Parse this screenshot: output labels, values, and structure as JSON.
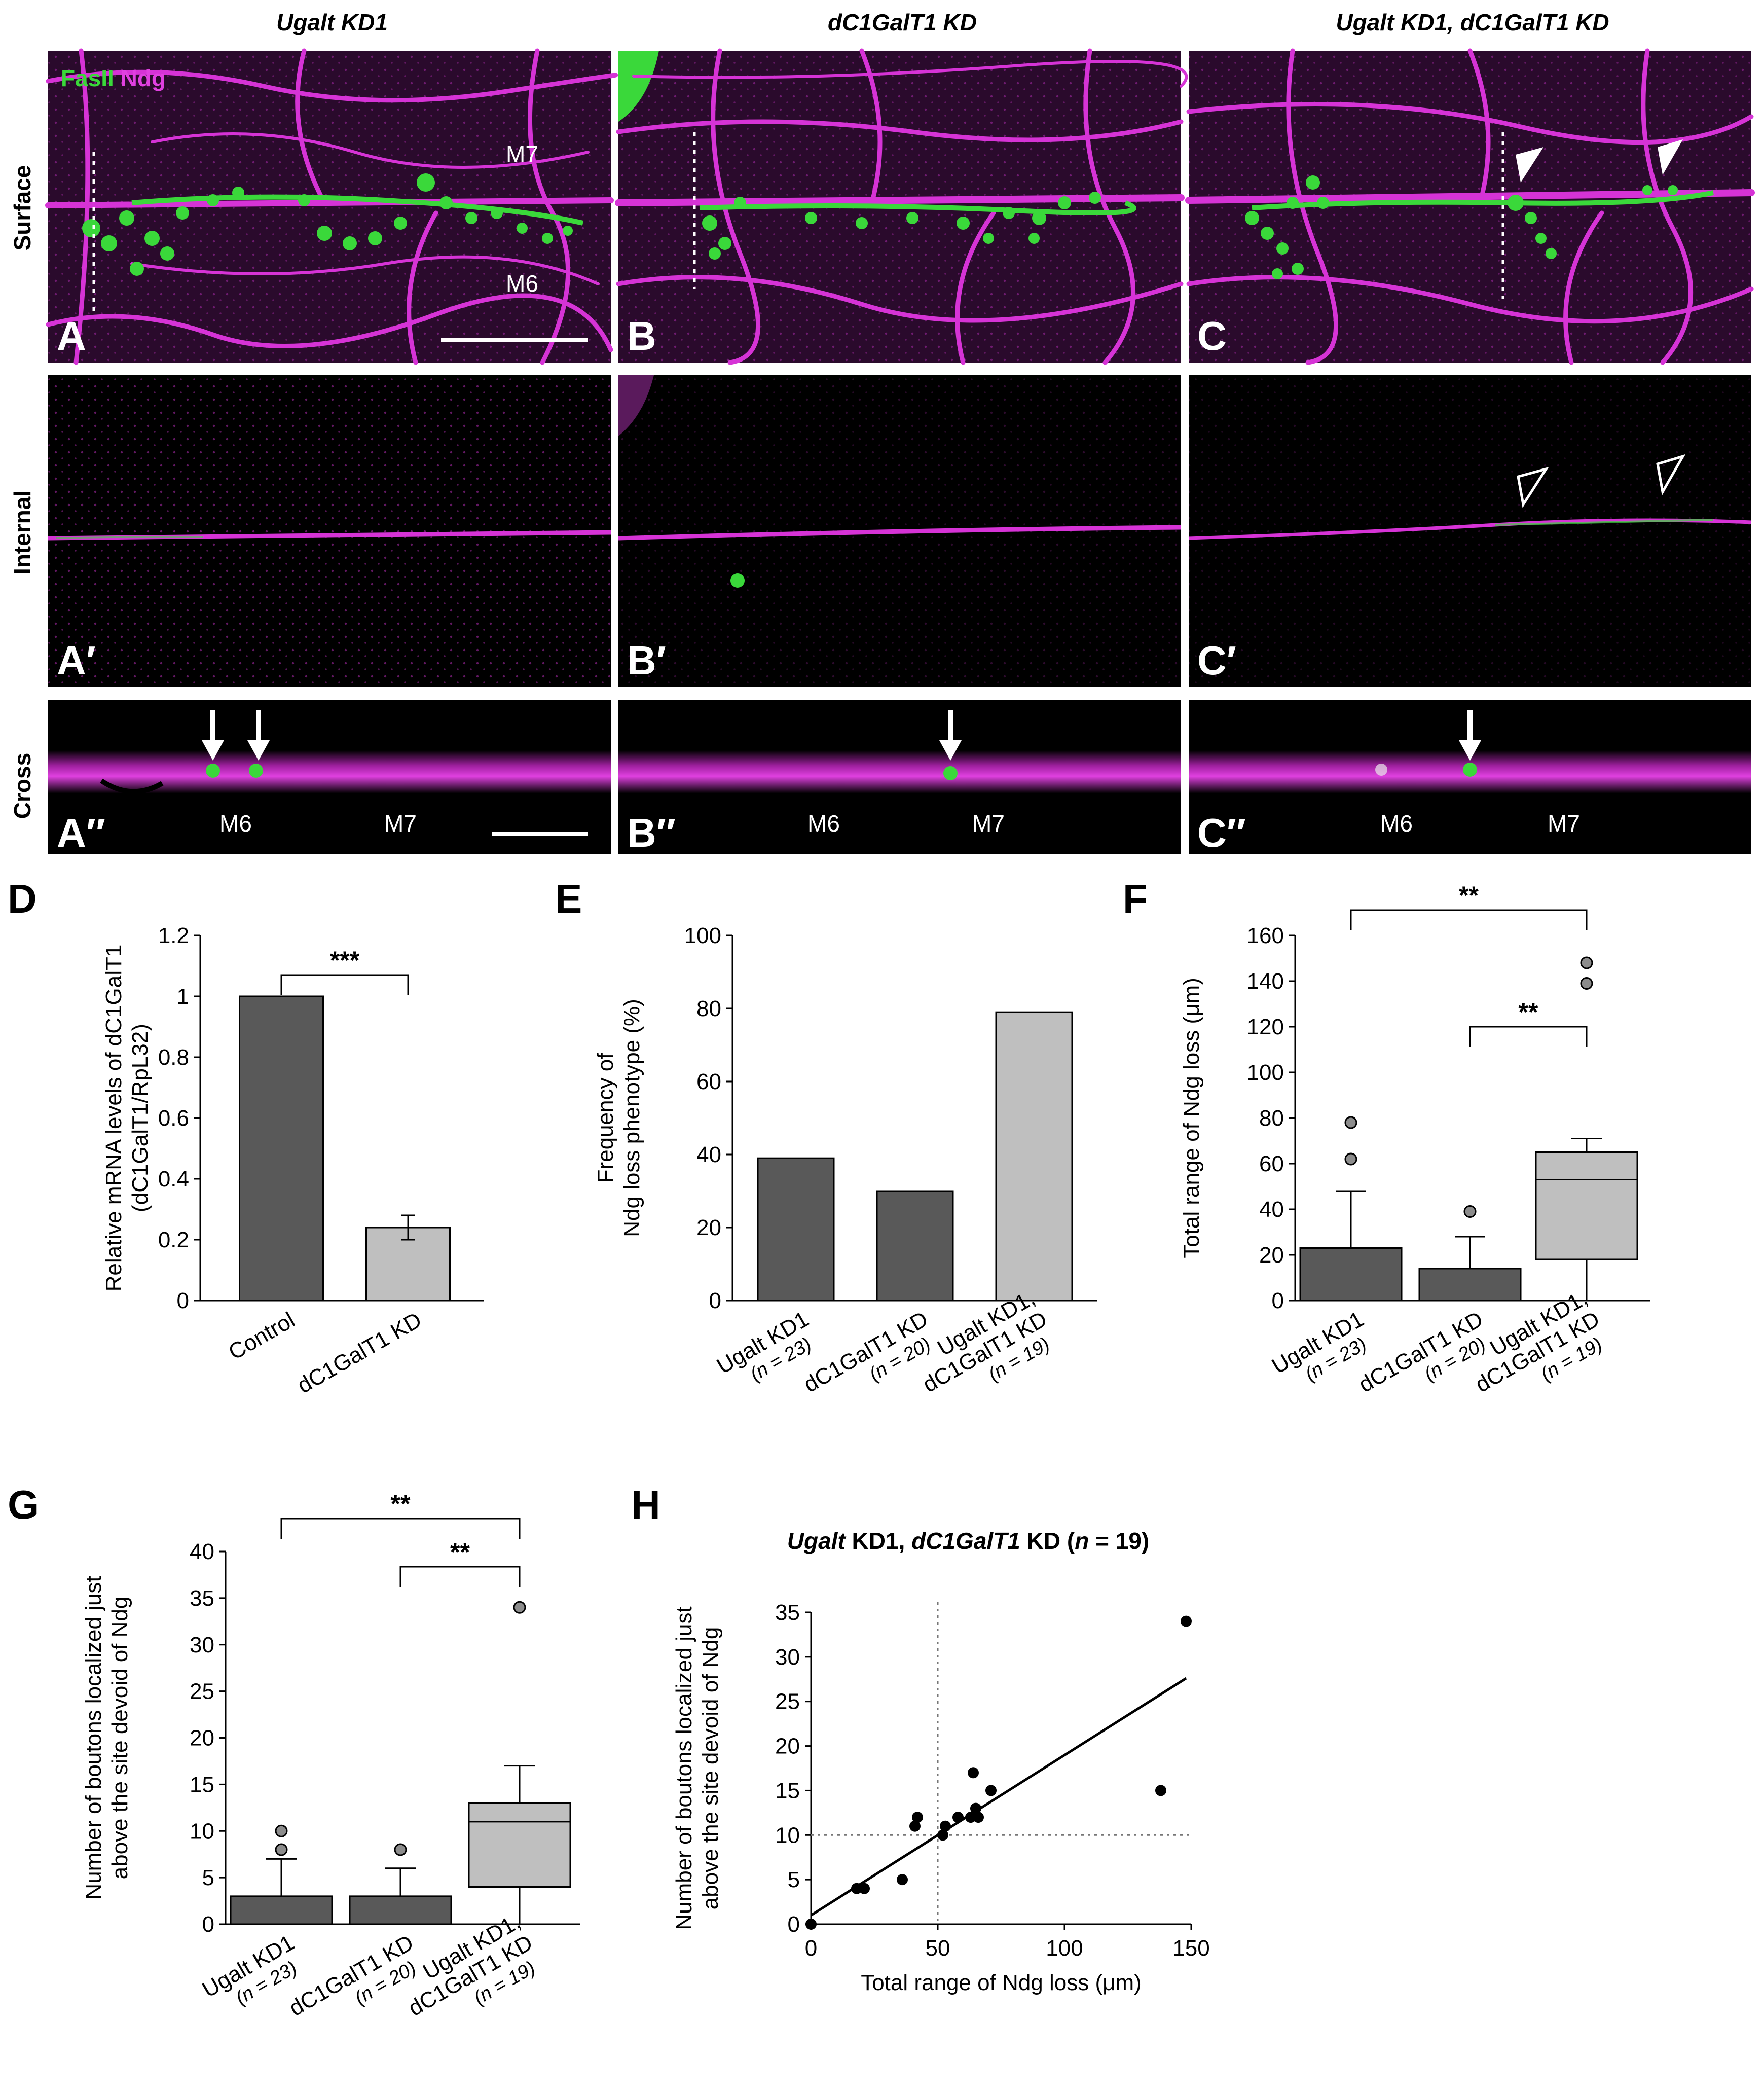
{
  "columns": [
    "Ugalt KD1",
    "dC1GalT1 KD",
    "Ugalt KD1, dC1GalT1 KD"
  ],
  "rows": [
    "Surface",
    "Internal",
    "Cross"
  ],
  "stain_labels": {
    "fas2": "FasII",
    "ndg": "Ndg"
  },
  "muscle_labels": {
    "m6": "M6",
    "m7": "M7"
  },
  "panel_letters": {
    "A": "A",
    "B": "B",
    "C": "C",
    "A1": "A′",
    "B1": "B′",
    "C1": "C′",
    "A2": "A″",
    "B2": "B″",
    "C2": "C″",
    "D": "D",
    "E": "E",
    "F": "F",
    "G": "G",
    "H": "H"
  },
  "colors": {
    "green": "#3ad83a",
    "magenta": "#d633d6",
    "dark_bar": "#595959",
    "light_bar": "#bfbfbf",
    "outlier": "#8c8c8c"
  },
  "chart_data": [
    {
      "id": "D",
      "type": "bar",
      "ylabel_lines": [
        "Relative mRNA levels of dC1GalT1",
        "(dC1GalT1/RpL32)"
      ],
      "categories": [
        "Control",
        "dC1GalT1 KD"
      ],
      "values": [
        1.0,
        0.24
      ],
      "errors": [
        0,
        0.04
      ],
      "ylim": [
        0,
        1.2
      ],
      "yticks": [
        "0",
        "0.2",
        "0.4",
        "0.6",
        "0.8",
        "1",
        "1.2"
      ],
      "significance": [
        "***"
      ]
    },
    {
      "id": "E",
      "type": "bar",
      "ylabel_lines": [
        "Frequency of",
        "Ndg loss phenotype (%)"
      ],
      "categories": [
        {
          "name": "Ugalt KD1",
          "n": "(n = 23)"
        },
        {
          "name": "dC1GalT1 KD",
          "n": "(n = 20)"
        },
        {
          "name": "Ugalt KD1, dC1GalT1 KD",
          "n": "(n = 19)"
        }
      ],
      "values": [
        39,
        30,
        79
      ],
      "ylim": [
        0,
        100
      ],
      "yticks": [
        "0",
        "20",
        "40",
        "60",
        "80",
        "100"
      ]
    },
    {
      "id": "F",
      "type": "box",
      "ylabel_lines": [
        "Total range of Ndg loss (μm)"
      ],
      "categories": [
        {
          "name": "Ugalt KD1",
          "n": "(n = 23)"
        },
        {
          "name": "dC1GalT1 KD",
          "n": "(n = 20)"
        },
        {
          "name": "Ugalt KD1, dC1GalT1 KD",
          "n": "(n = 19)"
        }
      ],
      "boxes": [
        {
          "q1": 0,
          "median": 0,
          "q3": 23,
          "whisker_low": 0,
          "whisker_high": 48,
          "outliers": [
            62,
            78
          ]
        },
        {
          "q1": 0,
          "median": 0,
          "q3": 14,
          "whisker_low": 0,
          "whisker_high": 28,
          "outliers": [
            39
          ]
        },
        {
          "q1": 18,
          "median": 53,
          "q3": 65,
          "whisker_low": 0,
          "whisker_high": 71,
          "outliers": [
            139,
            148
          ]
        }
      ],
      "ylim": [
        0,
        160
      ],
      "yticks": [
        "0",
        "20",
        "40",
        "60",
        "80",
        "100",
        "120",
        "140",
        "160"
      ],
      "significance": [
        "**",
        "**"
      ]
    },
    {
      "id": "G",
      "type": "box",
      "ylabel_lines": [
        "Number of boutons localized just",
        "above the site devoid of Ndg"
      ],
      "categories": [
        {
          "name": "Ugalt KD1",
          "n": "(n = 23)"
        },
        {
          "name": "dC1GalT1 KD",
          "n": "(n = 20)"
        },
        {
          "name": "Ugalt KD1, dC1GalT1 KD",
          "n": "(n = 19)"
        }
      ],
      "boxes": [
        {
          "q1": 0,
          "median": 0,
          "q3": 3,
          "whisker_low": 0,
          "whisker_high": 7,
          "outliers": [
            8,
            10
          ]
        },
        {
          "q1": 0,
          "median": 0,
          "q3": 3,
          "whisker_low": 0,
          "whisker_high": 6,
          "outliers": [
            8
          ]
        },
        {
          "q1": 4,
          "median": 11,
          "q3": 13,
          "whisker_low": 0,
          "whisker_high": 17,
          "outliers": [
            34
          ]
        }
      ],
      "ylim": [
        0,
        40
      ],
      "yticks": [
        "0",
        "5",
        "10",
        "15",
        "20",
        "25",
        "30",
        "35",
        "40"
      ],
      "significance": [
        "**",
        "**"
      ]
    },
    {
      "id": "H",
      "type": "scatter",
      "title_parts": [
        "Ugalt",
        " KD1, ",
        "dC1GalT1",
        " KD (",
        "n",
        " = 19)"
      ],
      "xlabel": "Total range of Ndg loss (μm)",
      "ylabel_lines": [
        "Number of boutons localized just",
        "above the site devoid of Ndg"
      ],
      "xlim": [
        0,
        150
      ],
      "ylim": [
        0,
        35
      ],
      "xticks": [
        "0",
        "50",
        "100",
        "150"
      ],
      "yticks": [
        "0",
        "5",
        "10",
        "15",
        "20",
        "25",
        "30",
        "35"
      ],
      "points": [
        [
          0,
          0
        ],
        [
          18,
          4
        ],
        [
          21,
          4
        ],
        [
          36,
          5
        ],
        [
          41,
          11
        ],
        [
          42,
          12
        ],
        [
          52,
          10
        ],
        [
          53,
          11
        ],
        [
          58,
          12
        ],
        [
          63,
          12
        ],
        [
          64,
          17
        ],
        [
          65,
          13
        ],
        [
          66,
          12
        ],
        [
          71,
          15
        ],
        [
          138,
          15
        ],
        [
          148,
          34
        ]
      ],
      "fit_line": [
        [
          0,
          1
        ],
        [
          148,
          27.6
        ]
      ],
      "ref_lines": {
        "x": 50,
        "y": 10
      }
    }
  ]
}
